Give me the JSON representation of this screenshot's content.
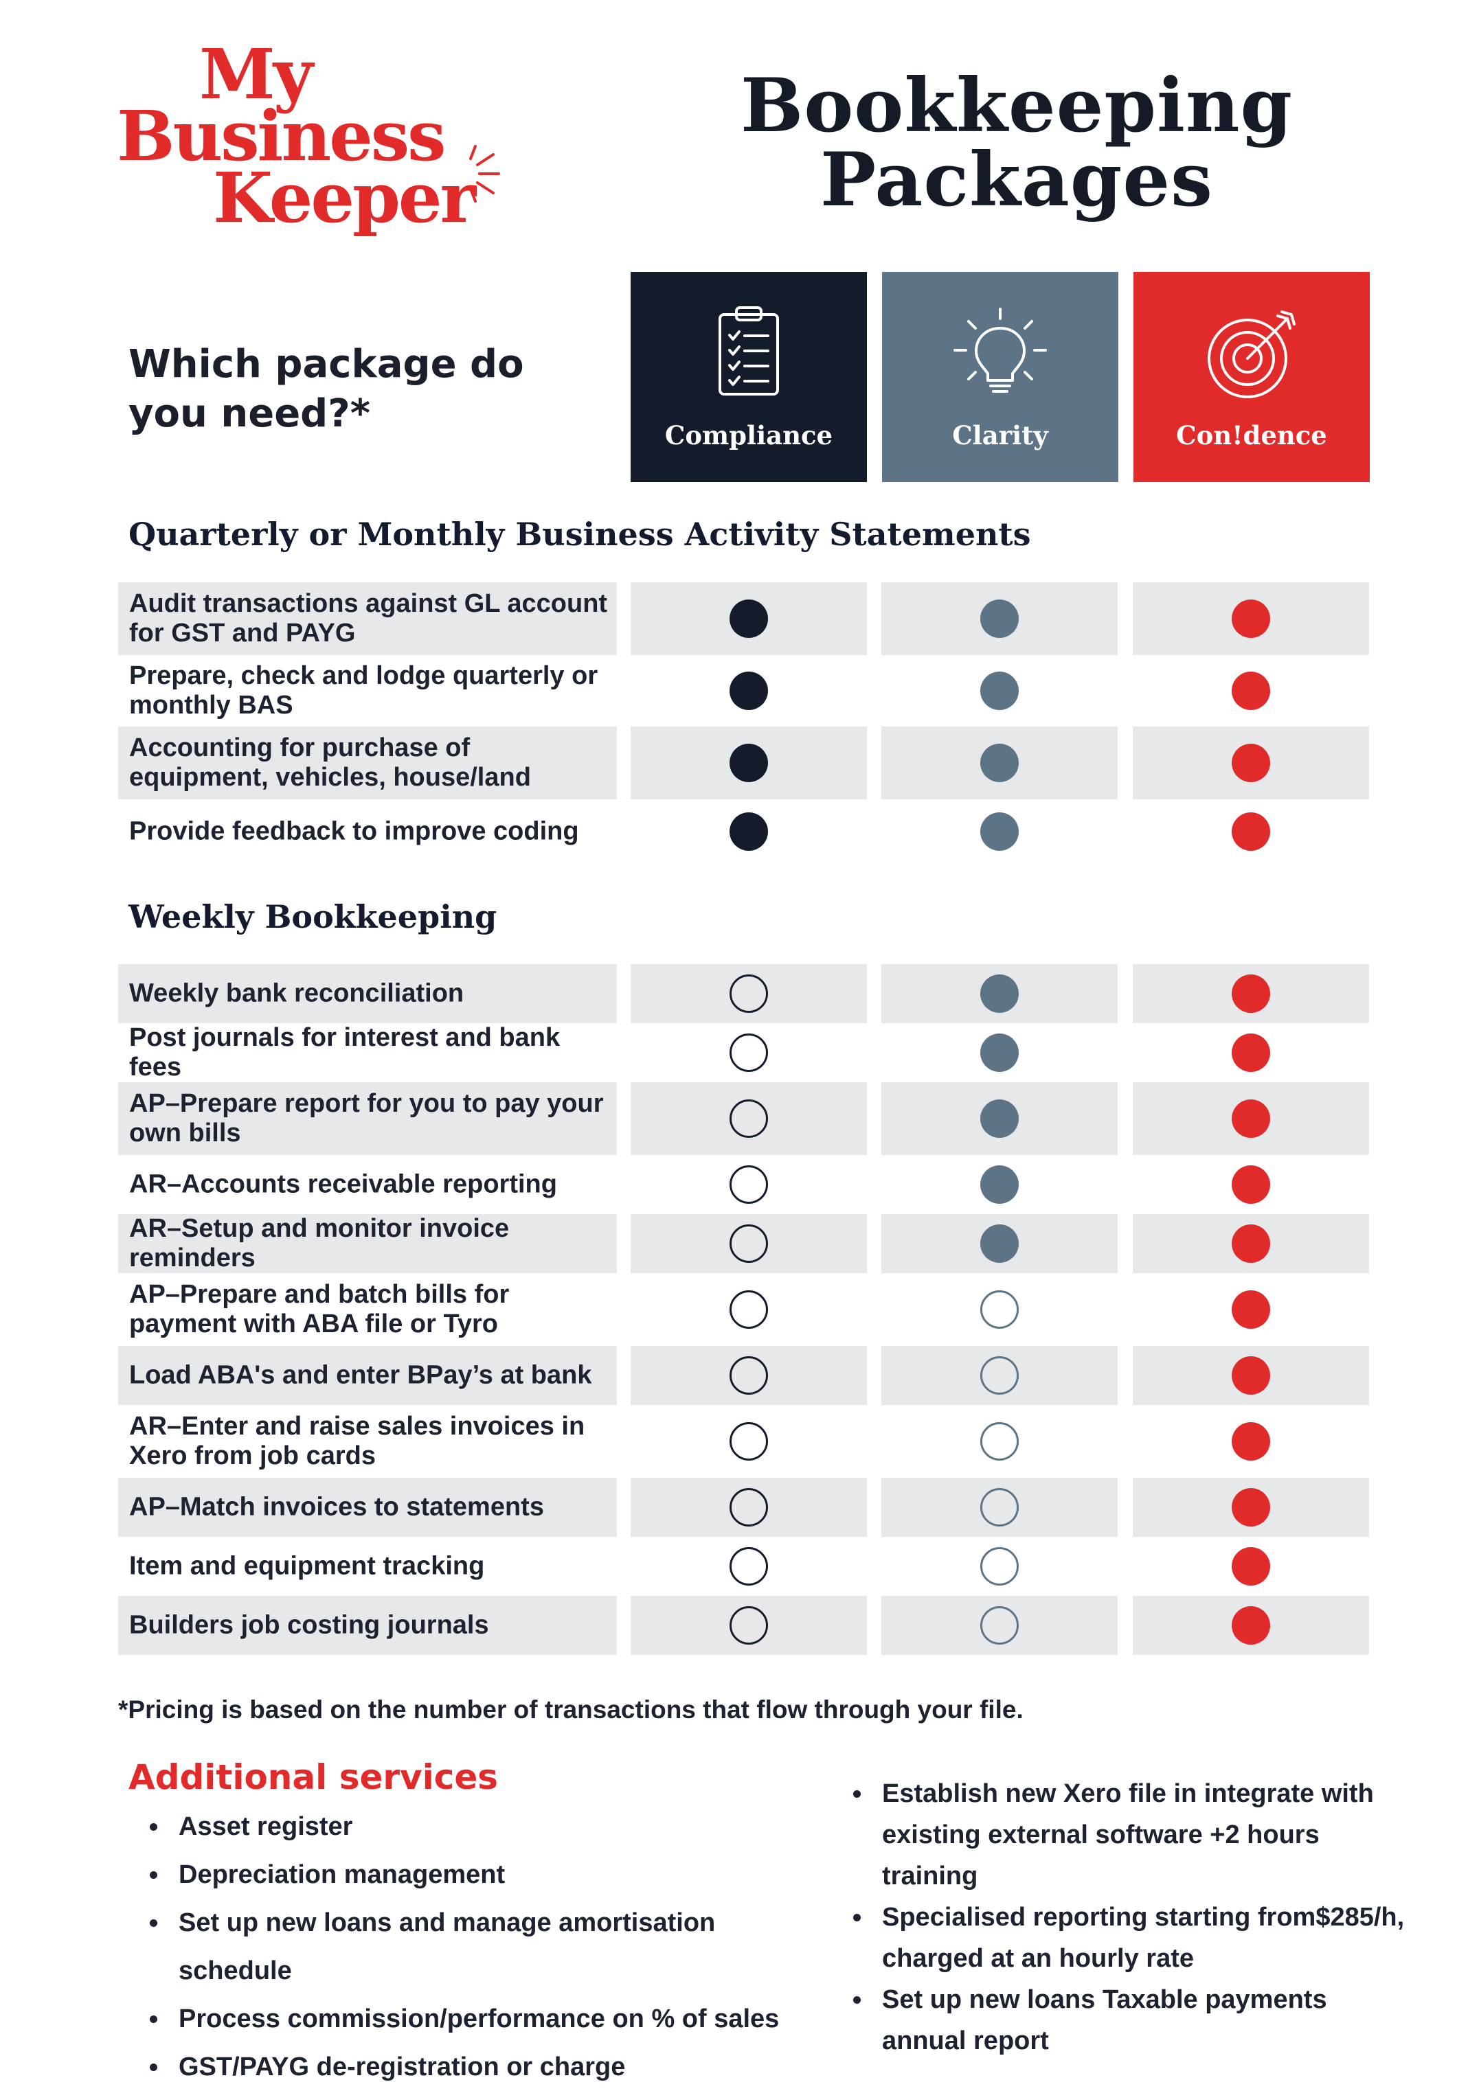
{
  "brand": {
    "logo_lines": [
      "My",
      "Business",
      "Keeper"
    ],
    "color": "#e12b2b"
  },
  "title": {
    "line1": "Bookkeeping",
    "line2": "Packages"
  },
  "question": "Which package do you need?*",
  "packages": [
    {
      "name": "Compliance",
      "icon": "clipboard-checklist-icon",
      "color": "#141c2b"
    },
    {
      "name": "Clarity",
      "icon": "lightbulb-icon",
      "color": "#5d7386"
    },
    {
      "name": "Con!dence",
      "icon": "target-arrow-icon",
      "color": "#e12b2b"
    }
  ],
  "sections": [
    {
      "heading": "Quarterly or Monthly Business Activity Statements",
      "rows": [
        {
          "label": "Audit transactions against GL account for GST and PAYG",
          "included": [
            true,
            true,
            true
          ]
        },
        {
          "label": "Prepare, check and lodge quarterly or monthly BAS",
          "included": [
            true,
            true,
            true
          ]
        },
        {
          "label": "Accounting for purchase of equipment, vehicles, house/land",
          "included": [
            true,
            true,
            true
          ]
        },
        {
          "label": "Provide feedback to improve coding",
          "included": [
            true,
            true,
            true
          ]
        }
      ]
    },
    {
      "heading": "Weekly Bookkeeping",
      "rows": [
        {
          "label": "Weekly bank reconciliation",
          "included": [
            false,
            true,
            true
          ]
        },
        {
          "label": "Post journals for interest and bank fees",
          "included": [
            false,
            true,
            true
          ]
        },
        {
          "label": "AP–Prepare report for you to pay your own bills",
          "included": [
            false,
            true,
            true
          ]
        },
        {
          "label": "AR–Accounts receivable reporting",
          "included": [
            false,
            true,
            true
          ]
        },
        {
          "label": "AR–Setup and monitor invoice reminders",
          "included": [
            false,
            true,
            true
          ]
        },
        {
          "label": "AP–Prepare and batch bills for payment with ABA file or Tyro",
          "included": [
            false,
            false,
            true
          ]
        },
        {
          "label": "Load ABA's and enter BPay’s at bank",
          "included": [
            false,
            false,
            true
          ]
        },
        {
          "label": "AR–Enter and raise sales invoices in Xero from job cards",
          "included": [
            false,
            false,
            true
          ]
        },
        {
          "label": "AP–Match invoices to statements",
          "included": [
            false,
            false,
            true
          ]
        },
        {
          "label": "Item and equipment tracking",
          "included": [
            false,
            false,
            true
          ]
        },
        {
          "label": "Builders job costing journals",
          "included": [
            false,
            false,
            true
          ]
        }
      ]
    }
  ],
  "footnote": "*Pricing is based on the number of transactions that flow through your file.",
  "additional": {
    "title": "Additional services",
    "left": [
      "Asset register",
      "Depreciation management",
      "Set up new loans and manage amortisation schedule",
      "Process commission/performance on % of sales",
      "GST/PAYG de-registration or charge"
    ],
    "right": [
      "Establish new Xero file in integrate with existing external software +2 hours training",
      "Specialised reporting starting from$285/h, charged at an hourly rate",
      "Set up new loans Taxable payments annual report"
    ]
  }
}
